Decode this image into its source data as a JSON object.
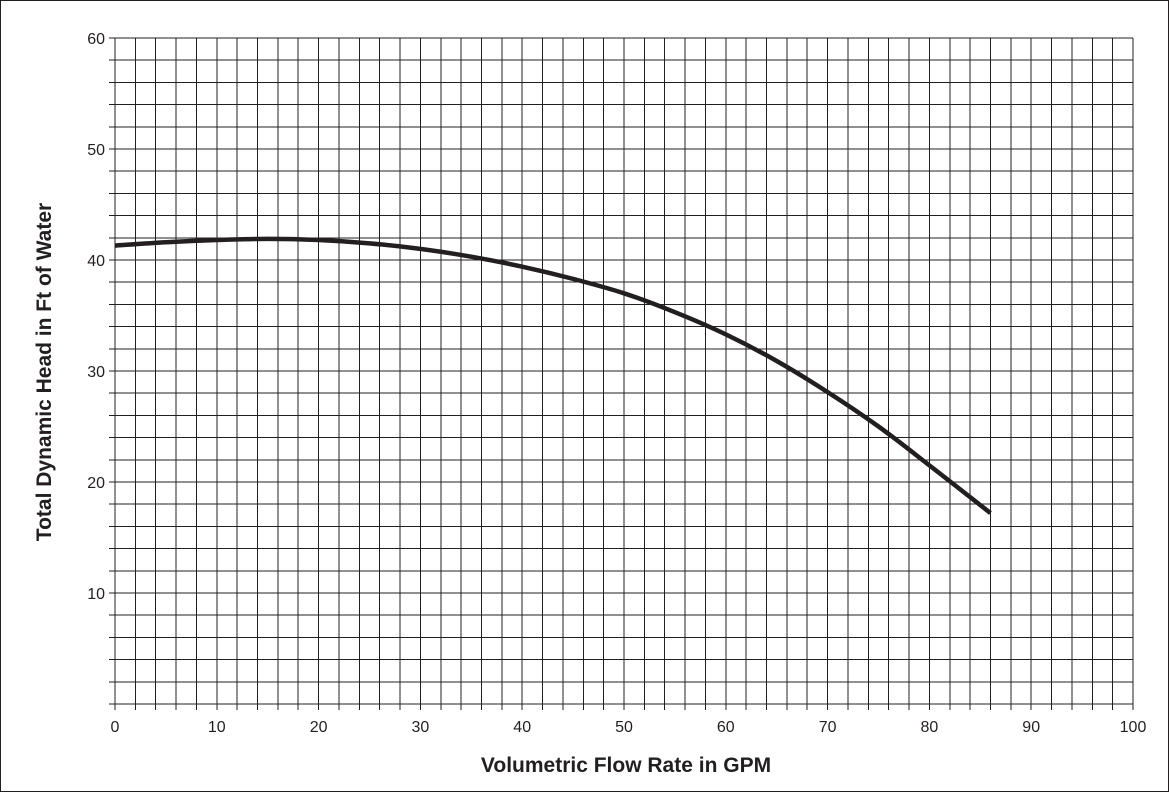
{
  "chart_data": {
    "type": "line",
    "title": "",
    "xlabel": "Volumetric Flow Rate in GPM",
    "ylabel": "Total Dynamic Head in Ft of Water",
    "xlim": [
      0,
      100
    ],
    "ylim": [
      0,
      60
    ],
    "x_ticks": [
      "0",
      "10",
      "20",
      "30",
      "40",
      "50",
      "60",
      "70",
      "80",
      "90",
      "100"
    ],
    "y_ticks": [
      "10",
      "20",
      "30",
      "40",
      "50",
      "60"
    ],
    "grid": true,
    "grid_minor_x": 2,
    "grid_minor_y": 2,
    "legend": "none",
    "colors": {
      "line": "#231f20",
      "grid": "#231f20",
      "text": "#231f20"
    },
    "series": [
      {
        "x": [
          0,
          5,
          10,
          15,
          20,
          25,
          30,
          35,
          40,
          45,
          50,
          55,
          60,
          65,
          70,
          75,
          80,
          86
        ],
        "y": [
          41.3,
          41.6,
          41.8,
          41.9,
          41.8,
          41.5,
          41.0,
          40.3,
          39.4,
          38.3,
          37.0,
          35.3,
          33.3,
          30.9,
          28.1,
          25.0,
          21.5,
          17.2
        ]
      }
    ]
  }
}
